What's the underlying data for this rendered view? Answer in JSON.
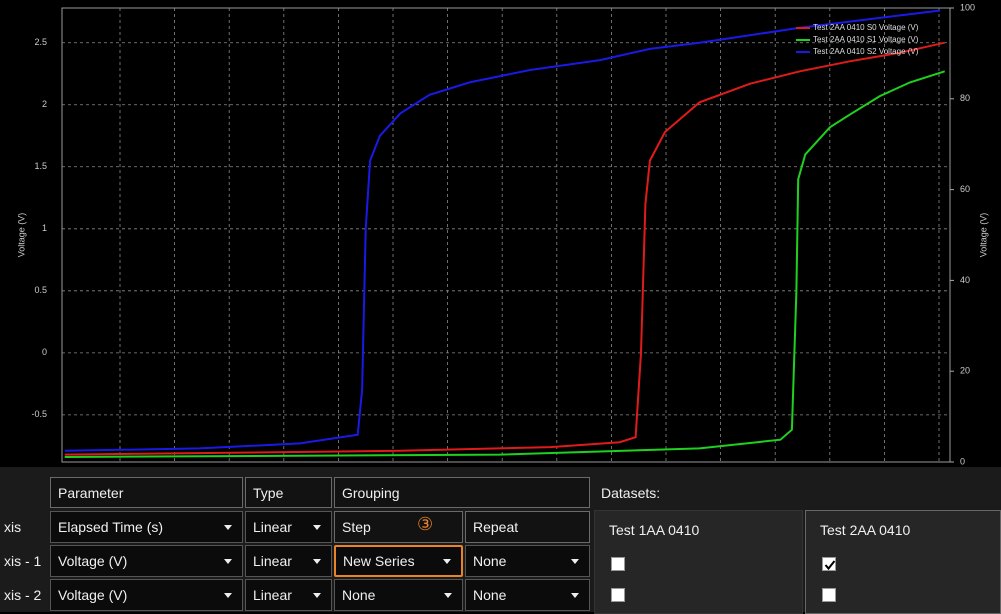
{
  "chart_data": {
    "type": "line",
    "ylabel": "Voltage (V)",
    "y2label": "Voltage (V)",
    "ylim": [
      -0.88,
      2.78
    ],
    "yticks": [
      -0.5,
      0,
      0.5,
      1,
      1.5,
      2,
      2.5
    ],
    "y2lim": [
      0,
      100
    ],
    "y2ticks": [
      0,
      20,
      40,
      60,
      80,
      100
    ],
    "xlim": [
      0,
      100
    ],
    "grid": true,
    "legend": "top-right",
    "series": [
      {
        "name": "Test 2AA 0410 S0 Voltage (V)",
        "color": "#e01b1b",
        "x": [
          0.3,
          38.1,
          55,
          62.8,
          64.6,
          65.2,
          65.7,
          66.2,
          67.9,
          71.8,
          77.5,
          83.1,
          88.7,
          94.4,
          99.4
        ],
        "values": [
          -0.82,
          -0.79,
          -0.76,
          -0.72,
          -0.68,
          0,
          1.2,
          1.55,
          1.78,
          2.02,
          2.17,
          2.27,
          2.35,
          2.42,
          2.5
        ]
      },
      {
        "name": "Test 2AA 0410 S1 Voltage (V)",
        "color": "#1fd11f",
        "x": [
          0.3,
          49.3,
          71.8,
          80.9,
          82.2,
          82.7,
          82.9,
          83.7,
          86.5,
          88.7,
          92.1,
          95.5,
          99.4
        ],
        "values": [
          -0.84,
          -0.82,
          -0.77,
          -0.7,
          -0.62,
          0.5,
          1.4,
          1.6,
          1.82,
          1.92,
          2.07,
          2.18,
          2.27
        ]
      },
      {
        "name": "Test 2AA 0410 S2 Voltage (V)",
        "color": "#1a1ae6",
        "x": [
          0.3,
          15.5,
          26.8,
          33.3,
          33.8,
          34.2,
          34.7,
          35.8,
          38.1,
          41.4,
          45.9,
          52.7,
          60.6,
          66.2,
          71.8,
          83.1,
          94.4,
          98.9
        ],
        "values": [
          -0.79,
          -0.77,
          -0.73,
          -0.66,
          -0.3,
          1.0,
          1.55,
          1.75,
          1.93,
          2.08,
          2.18,
          2.28,
          2.36,
          2.45,
          2.5,
          2.62,
          2.72,
          2.76
        ]
      }
    ]
  },
  "table": {
    "headers": [
      "Parameter",
      "Type",
      "Grouping"
    ],
    "row_labels": [
      "xis",
      "xis - 1",
      "xis - 2"
    ],
    "rows": [
      [
        "Elapsed Time (s)",
        "Linear",
        "Step",
        "Repeat"
      ],
      [
        "Voltage (V)",
        "Linear",
        "New Series",
        "None"
      ],
      [
        "Voltage (V)",
        "Linear",
        "None",
        "None"
      ]
    ],
    "marker": "③"
  },
  "datasets": {
    "title": "Datasets:",
    "items": [
      {
        "name": "Test 1AA 0410",
        "checked": [
          false,
          false
        ]
      },
      {
        "name": "Test 2AA 0410",
        "checked": [
          true,
          false
        ]
      }
    ]
  }
}
